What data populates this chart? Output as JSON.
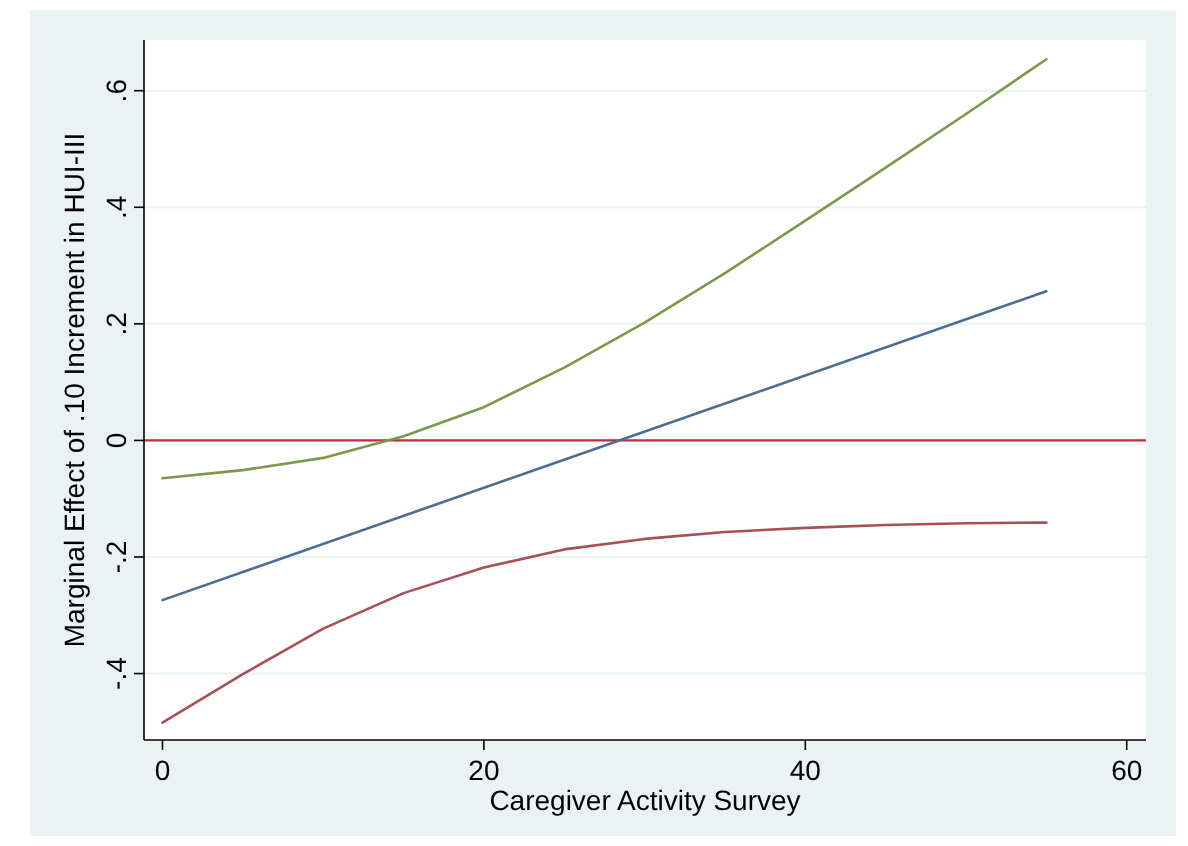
{
  "chart_data": {
    "type": "line",
    "xlabel": "Caregiver Activity Survey",
    "ylabel": "Marginal Effect of .10 Increment in HUI-III",
    "xlim": [
      -1.15,
      61.2
    ],
    "ylim": [
      -0.514,
      0.687
    ],
    "xticks": [
      0,
      20,
      40,
      60
    ],
    "yticks": [
      {
        "value": -0.4,
        "label": "-.4"
      },
      {
        "value": -0.2,
        "label": "-.2"
      },
      {
        "value": 0,
        "label": "0"
      },
      {
        "value": 0.2,
        "label": ".2"
      },
      {
        "value": 0.4,
        "label": ".4"
      },
      {
        "value": 0.6,
        "label": ".6"
      }
    ],
    "grid": "y",
    "marker": "none",
    "line_style": "solid",
    "ref_lines": [
      {
        "axis": "y",
        "value": 0,
        "color": "#c8283c"
      }
    ],
    "series": [
      {
        "color": "#7a9a4a",
        "x": [
          0,
          5,
          10,
          15,
          20,
          25,
          30,
          35,
          40,
          45,
          50,
          55
        ],
        "values": [
          -0.065,
          -0.051,
          -0.03,
          0.007,
          0.057,
          0.125,
          0.202,
          0.287,
          0.377,
          0.468,
          0.56,
          0.654
        ]
      },
      {
        "color": "#4a6d94",
        "x": [
          0,
          55
        ],
        "values": [
          -0.274,
          0.256
        ]
      },
      {
        "color": "#a85055",
        "x": [
          0,
          5,
          10,
          15,
          20,
          25,
          30,
          35,
          40,
          45,
          50,
          55
        ],
        "values": [
          -0.484,
          -0.401,
          -0.323,
          -0.262,
          -0.218,
          -0.187,
          -0.169,
          -0.157,
          -0.15,
          -0.145,
          -0.142,
          -0.141
        ]
      }
    ]
  }
}
